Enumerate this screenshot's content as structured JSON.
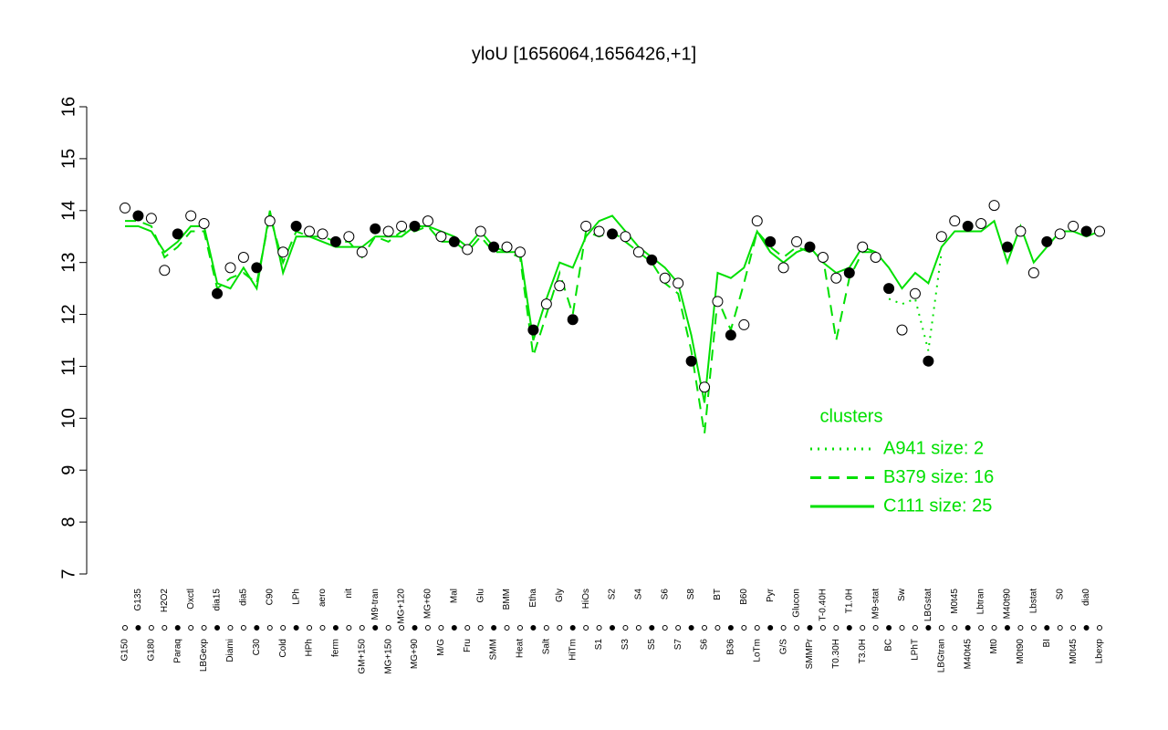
{
  "chart_data": {
    "type": "line",
    "title": "yloU [1656064,1656426,+1]",
    "categories": [
      "G150",
      "G135",
      "G180",
      "H2O2",
      "Paraq",
      "Oxctl",
      "LBGexp",
      "dia15",
      "Diami",
      "dia5",
      "C30",
      "C90",
      "Cold",
      "LPh",
      "HPh",
      "aero",
      "ferm",
      "nit",
      "GM+150",
      "M9-tran",
      "MG+150",
      "MG+120",
      "MG+90",
      "MG+60",
      "M/G",
      "Mal",
      "Fru",
      "Glu",
      "SMM",
      "BMM",
      "Heat",
      "Etha",
      "Salt",
      "Gly",
      "HiTm",
      "HiOs",
      "S1",
      "S2",
      "S3",
      "S4",
      "S5",
      "S6",
      "S7",
      "S8",
      "S6",
      "BT",
      "B36",
      "B60",
      "LoTm",
      "Pyr",
      "G/S",
      "Glucon",
      "SMMPr",
      "T-0.40H",
      "T0.30H",
      "T1.0H",
      "T3.0H",
      "M9-stat",
      "BC",
      "Sw",
      "LPhT",
      "LBGstat",
      "LBGtran",
      "M0t45",
      "M40t45",
      "Lbtran",
      "Mt0",
      "M40t90",
      "M0t90",
      "Lbstat",
      "BI",
      "S0",
      "M0t45",
      "dia0",
      "Lbexp"
    ],
    "values": [
      14.05,
      13.9,
      13.85,
      12.85,
      13.55,
      13.9,
      13.75,
      12.4,
      12.9,
      13.1,
      12.9,
      13.8,
      13.2,
      13.7,
      13.6,
      13.55,
      13.4,
      13.5,
      13.2,
      13.65,
      13.6,
      13.7,
      13.7,
      13.8,
      13.5,
      13.4,
      13.25,
      13.6,
      13.3,
      13.3,
      13.2,
      11.7,
      12.2,
      12.55,
      11.9,
      13.7,
      13.6,
      13.55,
      13.5,
      13.2,
      13.05,
      12.7,
      12.6,
      11.1,
      10.6,
      12.25,
      11.6,
      11.8,
      13.8,
      13.4,
      12.9,
      13.4,
      13.3,
      13.1,
      12.7,
      12.8,
      13.3,
      13.1,
      12.5,
      11.7,
      12.4,
      11.1,
      13.5,
      13.8,
      13.7,
      13.75,
      14.1,
      13.3,
      13.6,
      12.8,
      13.4,
      13.55,
      13.7,
      13.6,
      13.6
    ],
    "series": [
      {
        "name": "A941 size: 2",
        "color": "#00e000",
        "dash": "dotted",
        "values": [
          null,
          null,
          null,
          null,
          null,
          null,
          null,
          null,
          null,
          null,
          null,
          null,
          null,
          null,
          null,
          null,
          null,
          null,
          null,
          null,
          null,
          null,
          null,
          null,
          null,
          null,
          null,
          null,
          null,
          null,
          null,
          null,
          null,
          null,
          null,
          null,
          null,
          null,
          null,
          null,
          null,
          null,
          null,
          null,
          null,
          null,
          null,
          null,
          null,
          null,
          null,
          null,
          null,
          null,
          null,
          null,
          null,
          null,
          12.3,
          12.2,
          12.3,
          11.3,
          13.2,
          null,
          null,
          null,
          null,
          null,
          null,
          null,
          null,
          null,
          null,
          null,
          null
        ]
      },
      {
        "name": "B379 size: 16",
        "color": "#00e000",
        "dash": "dashed",
        "values": [
          13.8,
          13.8,
          13.7,
          13.1,
          13.3,
          13.6,
          13.6,
          12.5,
          12.7,
          12.8,
          12.6,
          13.9,
          13.0,
          13.6,
          13.5,
          13.5,
          13.4,
          13.4,
          13.1,
          13.5,
          13.4,
          13.6,
          13.6,
          13.7,
          13.4,
          13.4,
          13.2,
          13.5,
          13.2,
          13.2,
          13.1,
          11.2,
          12.0,
          12.8,
          12.0,
          13.6,
          13.5,
          13.6,
          13.4,
          13.2,
          13.0,
          12.6,
          12.4,
          11.3,
          9.7,
          12.3,
          11.7,
          12.6,
          13.6,
          13.3,
          13.1,
          13.3,
          13.2,
          13.1,
          11.5,
          12.7,
          13.2,
          13.2,
          null,
          null,
          null,
          null,
          null,
          null,
          null,
          null,
          null,
          null,
          null,
          null,
          null,
          null,
          null,
          null,
          null
        ]
      },
      {
        "name": "C111 size: 25",
        "color": "#00e000",
        "dash": "solid",
        "values": [
          13.7,
          13.7,
          13.6,
          13.2,
          13.4,
          13.7,
          13.7,
          12.6,
          12.5,
          12.9,
          12.5,
          14.0,
          12.8,
          13.5,
          13.5,
          13.4,
          13.3,
          13.3,
          13.3,
          13.5,
          13.5,
          13.5,
          13.7,
          13.7,
          13.6,
          13.5,
          13.3,
          13.6,
          13.3,
          13.2,
          13.2,
          11.5,
          12.3,
          13.0,
          12.9,
          13.5,
          13.8,
          13.9,
          13.6,
          13.3,
          13.1,
          12.9,
          12.6,
          11.6,
          10.3,
          12.8,
          12.7,
          12.9,
          13.6,
          13.2,
          13.0,
          13.2,
          13.3,
          13.0,
          12.8,
          12.9,
          13.3,
          13.2,
          12.9,
          12.5,
          12.8,
          12.6,
          13.3,
          13.6,
          13.6,
          13.6,
          13.8,
          13.0,
          13.7,
          13.0,
          13.3,
          13.6,
          13.6,
          13.5,
          13.6
        ]
      }
    ],
    "ylim": [
      7,
      16
    ],
    "yticks": [
      7,
      8,
      9,
      10,
      11,
      12,
      13,
      14,
      15,
      16
    ],
    "legend_title": "clusters",
    "legend": "right"
  }
}
